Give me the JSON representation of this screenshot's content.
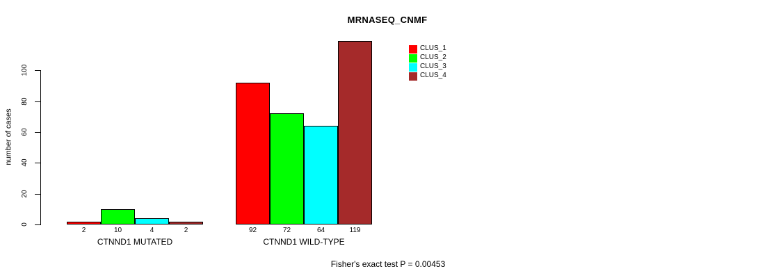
{
  "chart_data": {
    "type": "bar",
    "title": "MRNASEQ_CNMF",
    "ylabel": "number of cases",
    "xlabel": "",
    "categories": [
      "CTNND1 MUTATED",
      "CTNND1 WILD-TYPE"
    ],
    "series": [
      {
        "name": "CLUS_1",
        "color": "#ff0000",
        "values": [
          2,
          92
        ]
      },
      {
        "name": "CLUS_2",
        "color": "#00ff00",
        "values": [
          10,
          72
        ]
      },
      {
        "name": "CLUS_3",
        "color": "#00ffff",
        "values": [
          4,
          64
        ]
      },
      {
        "name": "CLUS_4",
        "color": "#a52a2a",
        "values": [
          2,
          119
        ]
      }
    ],
    "yticks": [
      0,
      20,
      40,
      60,
      80,
      100
    ],
    "ylim": [
      0,
      119
    ],
    "grid": false,
    "bar_value_labels_shown": true,
    "legend_position": "top-right",
    "annotation": "Fisher's exact test P = 0.00453"
  }
}
